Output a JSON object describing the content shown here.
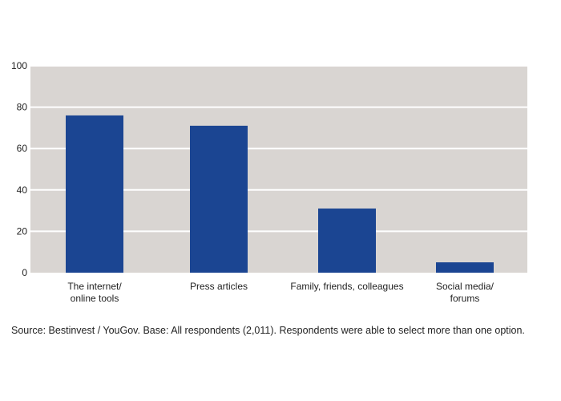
{
  "chart_data": {
    "type": "bar",
    "categories": [
      "The internet/\nonline tools",
      "Press articles",
      "Family, friends, colleagues",
      "Social media/\nforums"
    ],
    "values": [
      76,
      71,
      31,
      5
    ],
    "ylim": [
      0,
      100
    ],
    "yticks": [
      0,
      20,
      40,
      60,
      80,
      100
    ],
    "grid": true,
    "title": "",
    "xlabel": "",
    "ylabel": ""
  },
  "colors": {
    "bar": "#1b4592",
    "plot_background": "#d9d5d2",
    "gridline": "#ffffff"
  },
  "source_note": "Source: Bestinvest / YouGov. Base: All respondents (2,011). Respondents were able to select more than one option."
}
